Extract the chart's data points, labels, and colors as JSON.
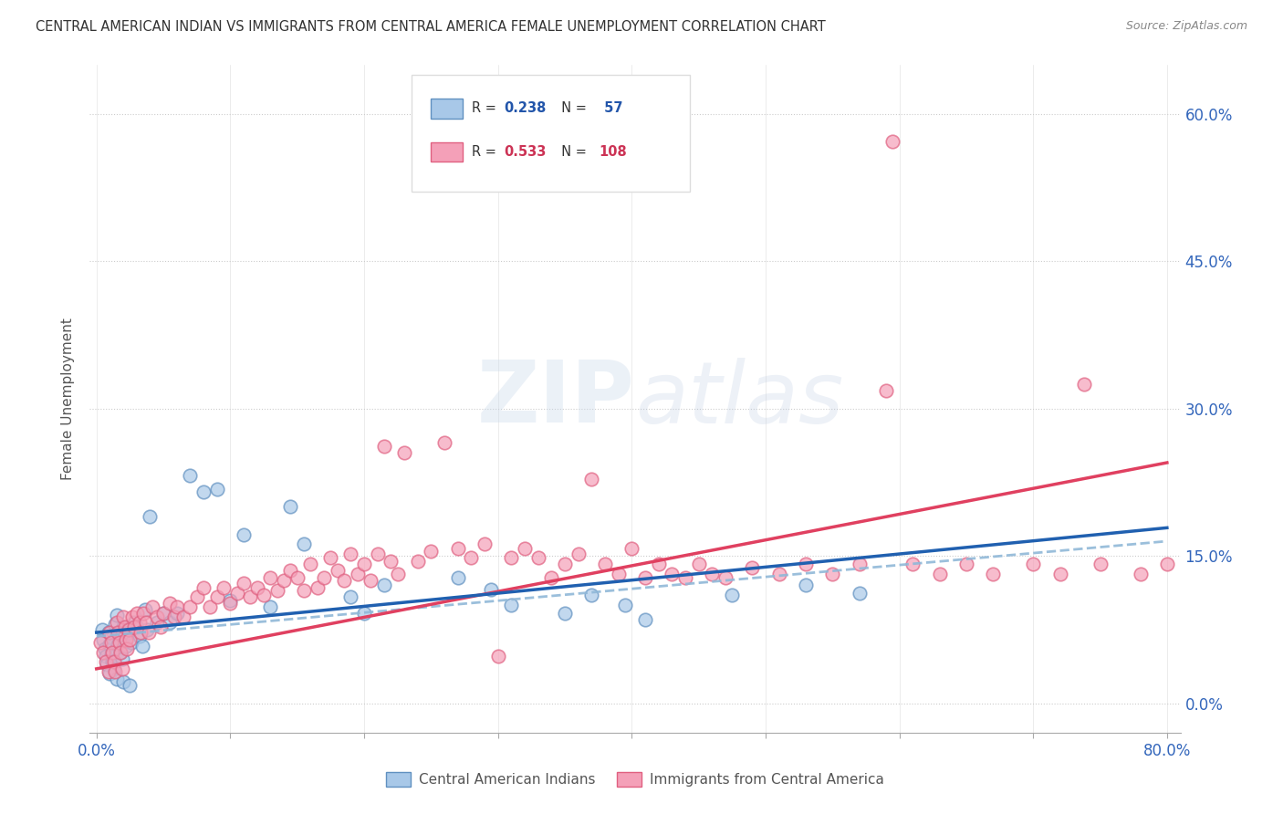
{
  "title": "CENTRAL AMERICAN INDIAN VS IMMIGRANTS FROM CENTRAL AMERICA FEMALE UNEMPLOYMENT CORRELATION CHART",
  "source": "Source: ZipAtlas.com",
  "ylabel": "Female Unemployment",
  "ytick_values": [
    0.0,
    0.15,
    0.3,
    0.45,
    0.6
  ],
  "xlim": [
    -0.005,
    0.81
  ],
  "ylim": [
    -0.03,
    0.65
  ],
  "color_blue": "#a8c8e8",
  "color_pink": "#f4a0b8",
  "color_blue_edge": "#6090c0",
  "color_pink_edge": "#e06080",
  "color_blue_line": "#2060b0",
  "color_pink_line": "#e04060",
  "color_blue_dashed": "#90b8d8",
  "watermark_color": "#c8d8ea",
  "series1_label": "Central American Indians",
  "series2_label": "Immigrants from Central America",
  "legend_r1": "0.238",
  "legend_n1": "57",
  "legend_r2": "0.533",
  "legend_n2": "108",
  "blue_x": [
    0.004,
    0.005,
    0.006,
    0.007,
    0.008,
    0.009,
    0.01,
    0.011,
    0.012,
    0.013,
    0.014,
    0.015,
    0.016,
    0.017,
    0.018,
    0.019,
    0.02,
    0.021,
    0.022,
    0.024,
    0.026,
    0.028,
    0.03,
    0.032,
    0.034,
    0.036,
    0.038,
    0.04,
    0.045,
    0.05,
    0.055,
    0.06,
    0.07,
    0.08,
    0.09,
    0.1,
    0.11,
    0.13,
    0.145,
    0.155,
    0.19,
    0.2,
    0.215,
    0.27,
    0.295,
    0.31,
    0.35,
    0.37,
    0.395,
    0.41,
    0.475,
    0.53,
    0.57,
    0.01,
    0.015,
    0.02,
    0.025
  ],
  "blue_y": [
    0.075,
    0.065,
    0.055,
    0.048,
    0.04,
    0.072,
    0.06,
    0.05,
    0.042,
    0.035,
    0.08,
    0.09,
    0.06,
    0.07,
    0.052,
    0.045,
    0.078,
    0.068,
    0.058,
    0.072,
    0.062,
    0.082,
    0.078,
    0.068,
    0.058,
    0.095,
    0.075,
    0.19,
    0.082,
    0.092,
    0.082,
    0.092,
    0.232,
    0.215,
    0.218,
    0.105,
    0.172,
    0.098,
    0.2,
    0.162,
    0.108,
    0.092,
    0.12,
    0.128,
    0.116,
    0.1,
    0.092,
    0.11,
    0.1,
    0.085,
    0.11,
    0.12,
    0.112,
    0.03,
    0.025,
    0.022,
    0.018
  ],
  "pink_x": [
    0.003,
    0.005,
    0.007,
    0.009,
    0.01,
    0.011,
    0.012,
    0.013,
    0.014,
    0.015,
    0.016,
    0.017,
    0.018,
    0.019,
    0.02,
    0.021,
    0.022,
    0.023,
    0.024,
    0.025,
    0.027,
    0.028,
    0.03,
    0.032,
    0.033,
    0.035,
    0.037,
    0.039,
    0.042,
    0.045,
    0.048,
    0.05,
    0.055,
    0.058,
    0.06,
    0.065,
    0.07,
    0.075,
    0.08,
    0.085,
    0.09,
    0.095,
    0.1,
    0.105,
    0.11,
    0.115,
    0.12,
    0.125,
    0.13,
    0.135,
    0.14,
    0.145,
    0.15,
    0.155,
    0.16,
    0.165,
    0.17,
    0.175,
    0.18,
    0.185,
    0.19,
    0.195,
    0.2,
    0.205,
    0.21,
    0.215,
    0.22,
    0.225,
    0.23,
    0.24,
    0.25,
    0.26,
    0.27,
    0.28,
    0.29,
    0.3,
    0.31,
    0.32,
    0.33,
    0.34,
    0.35,
    0.36,
    0.37,
    0.38,
    0.39,
    0.4,
    0.41,
    0.42,
    0.43,
    0.44,
    0.45,
    0.46,
    0.47,
    0.49,
    0.51,
    0.53,
    0.55,
    0.57,
    0.59,
    0.61,
    0.63,
    0.65,
    0.67,
    0.7,
    0.72,
    0.75,
    0.78,
    0.8
  ],
  "pink_y": [
    0.062,
    0.052,
    0.042,
    0.032,
    0.072,
    0.062,
    0.052,
    0.042,
    0.032,
    0.082,
    0.072,
    0.062,
    0.052,
    0.035,
    0.088,
    0.078,
    0.065,
    0.055,
    0.075,
    0.065,
    0.088,
    0.078,
    0.092,
    0.082,
    0.072,
    0.092,
    0.082,
    0.072,
    0.098,
    0.088,
    0.078,
    0.092,
    0.102,
    0.088,
    0.098,
    0.088,
    0.098,
    0.108,
    0.118,
    0.098,
    0.108,
    0.118,
    0.102,
    0.112,
    0.122,
    0.108,
    0.118,
    0.11,
    0.128,
    0.115,
    0.125,
    0.135,
    0.128,
    0.115,
    0.142,
    0.118,
    0.128,
    0.148,
    0.135,
    0.125,
    0.152,
    0.132,
    0.142,
    0.125,
    0.152,
    0.262,
    0.145,
    0.132,
    0.255,
    0.145,
    0.155,
    0.265,
    0.158,
    0.148,
    0.162,
    0.048,
    0.148,
    0.158,
    0.148,
    0.128,
    0.142,
    0.152,
    0.228,
    0.142,
    0.132,
    0.158,
    0.128,
    0.142,
    0.132,
    0.128,
    0.142,
    0.132,
    0.128,
    0.138,
    0.132,
    0.142,
    0.132,
    0.142,
    0.318,
    0.142,
    0.132,
    0.142,
    0.132,
    0.142,
    0.132,
    0.142,
    0.132,
    0.142
  ],
  "pink_outlier_x": [
    0.595
  ],
  "pink_outlier_y": [
    0.572
  ],
  "pink_high_x": [
    0.738
  ],
  "pink_high_y": [
    0.325
  ]
}
